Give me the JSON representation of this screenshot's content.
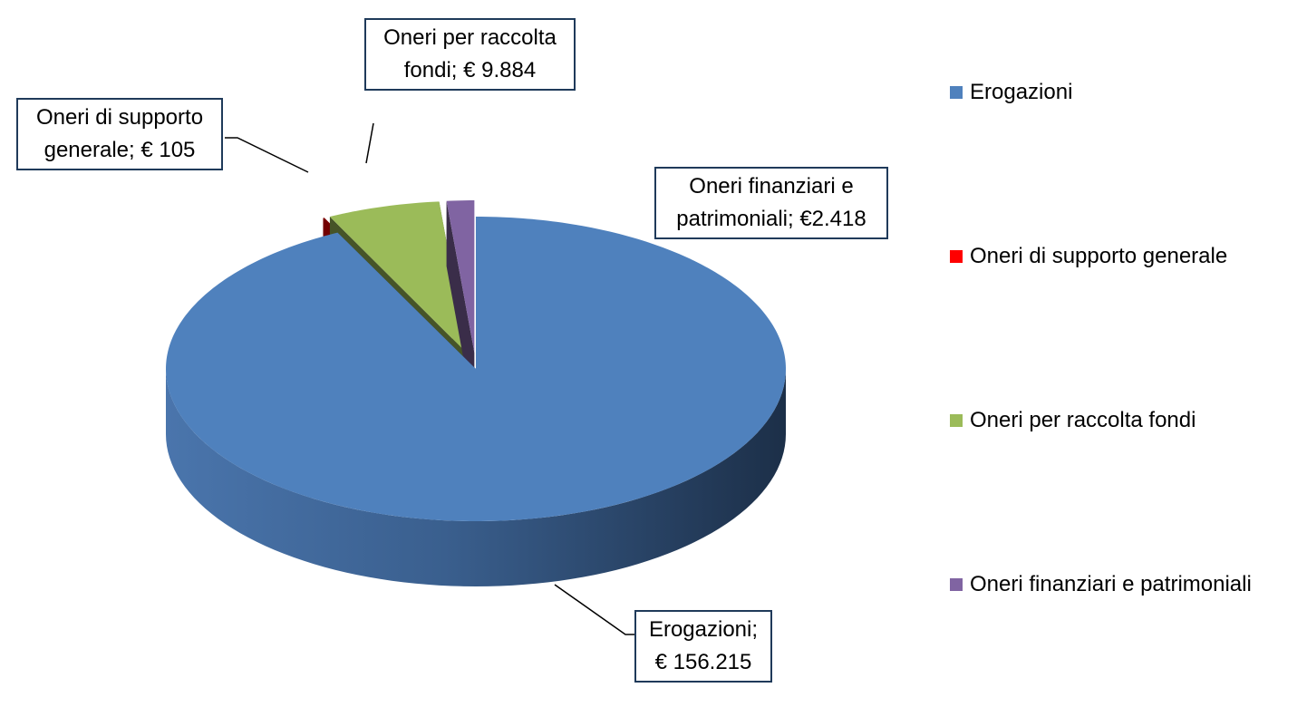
{
  "chart_data": {
    "type": "pie3d",
    "categories": [
      "Erogazioni",
      "Oneri di supporto generale",
      "Oneri per raccolta fondi",
      "Oneri finanziari e patrimoniali"
    ],
    "values": [
      156215,
      105,
      9884,
      2418
    ],
    "value_labels": [
      "Erogazioni; € 156.215",
      "Oneri di supporto generale; € 105",
      "Oneri per raccolta fondi; € 9.884",
      "Oneri finanziari e patrimoniali; €2.418"
    ],
    "colors": [
      "#4f81bd",
      "#ff0000",
      "#9bbb59",
      "#8064a2"
    ],
    "legend": "right"
  }
}
